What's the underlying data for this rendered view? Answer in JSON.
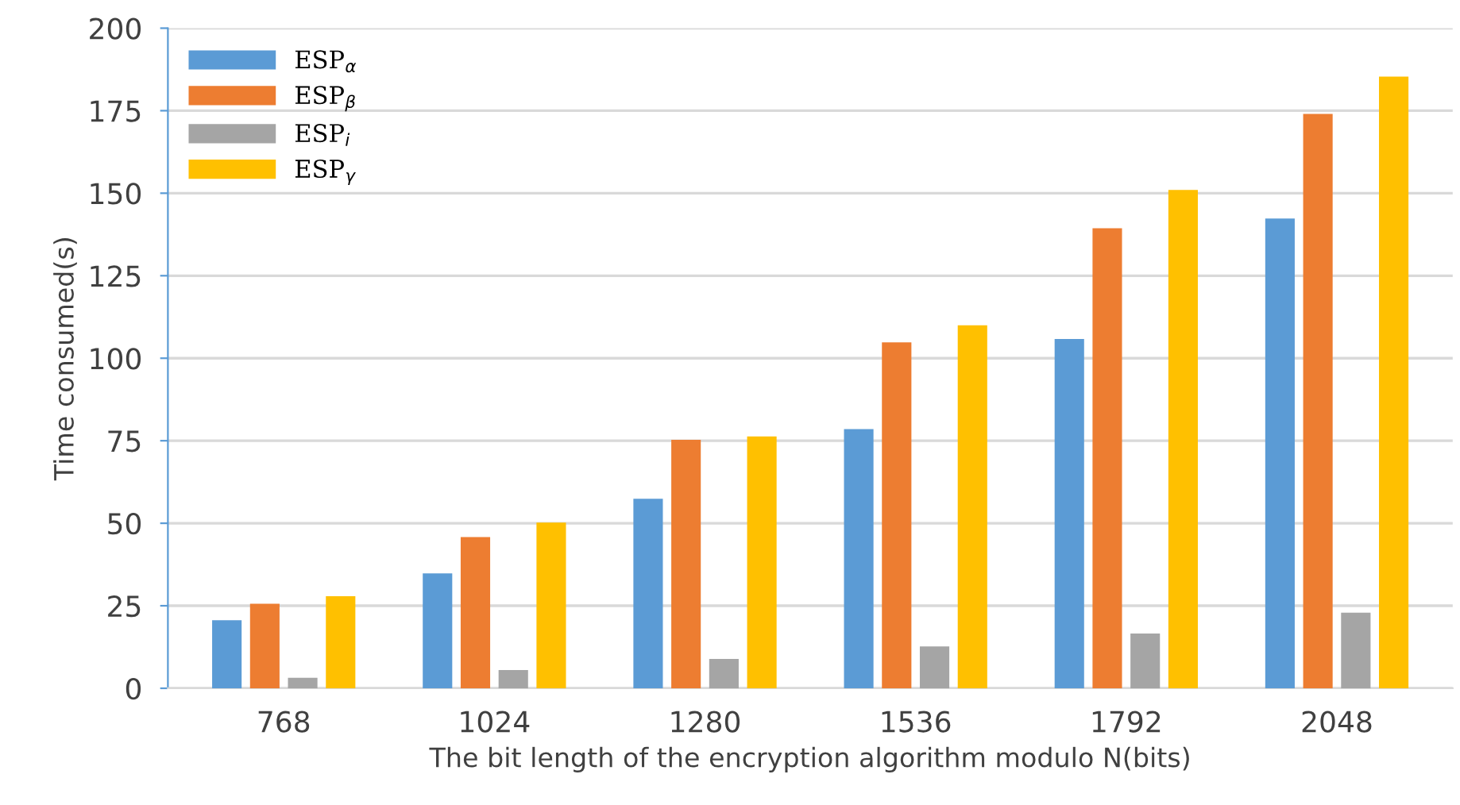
{
  "chart_data": {
    "type": "bar",
    "xlabel": "The bit length of the encryption algorithm modulo N(bits)",
    "ylabel": "Time consumed(s)",
    "categories": [
      "768",
      "1024",
      "1280",
      "1536",
      "1792",
      "2048"
    ],
    "series": [
      {
        "name": "ESP$_{α}$",
        "color": "#5b9bd5",
        "values": [
          20.6,
          34.8,
          57.4,
          78.5,
          105.8,
          142.3
        ]
      },
      {
        "name": "ESP$_{β}$",
        "color": "#ed7d31",
        "values": [
          25.6,
          45.8,
          75.3,
          104.8,
          139.4,
          174
        ]
      },
      {
        "name": "ESP$_{i}$",
        "color": "#a5a5a5",
        "values": [
          3.2,
          5.5,
          8.9,
          12.7,
          16.6,
          22.9
        ]
      },
      {
        "name": "ESP$_{γ}$",
        "color": "#ffc000",
        "values": [
          27.9,
          50.2,
          76.3,
          110,
          151,
          185.3
        ]
      }
    ],
    "ylim": [
      0,
      200
    ],
    "yticks": [
      0,
      25,
      50,
      75,
      100,
      125,
      150,
      175,
      200
    ],
    "grid": "y",
    "legend": "top left"
  }
}
